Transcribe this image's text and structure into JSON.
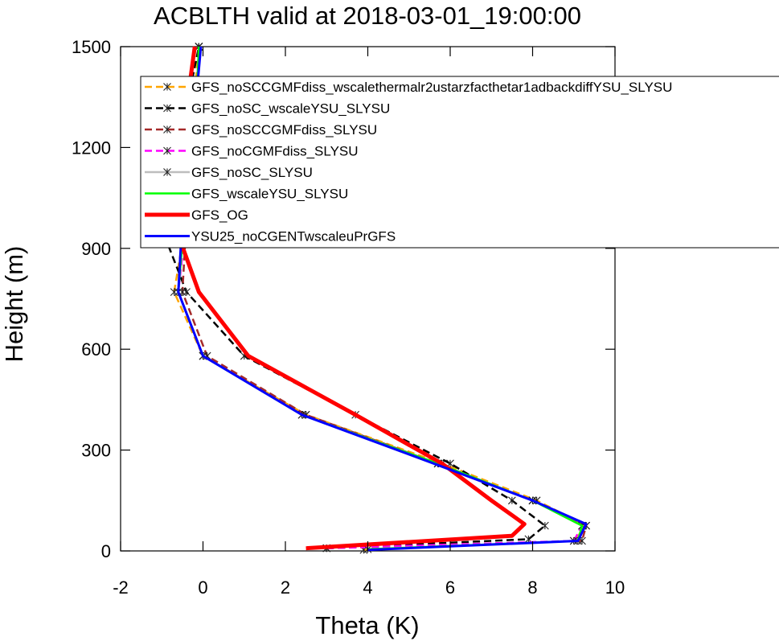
{
  "chart_data": {
    "type": "line",
    "title": "ACBLTH valid at 2018-03-01_19:00:00",
    "xlabel": "Theta (K)",
    "ylabel": "Height (m)",
    "xlim": [
      -2,
      10
    ],
    "ylim": [
      0,
      1500
    ],
    "xticks": [
      -2,
      0,
      2,
      4,
      6,
      8,
      10
    ],
    "yticks": [
      0,
      300,
      600,
      900,
      1200,
      1500
    ],
    "grid": false,
    "legend_position": "top-right",
    "series": [
      {
        "name": "GFS_noSCCGMFdiss_wscalethermalr2ustarzfacthetar1adbackdiffYSU_SLYSU",
        "color": "#ffa500",
        "dash": "dash",
        "marker": "asterisk",
        "width": 2.5,
        "points": [
          [
            3.9,
            3
          ],
          [
            9.0,
            30
          ],
          [
            9.3,
            75
          ],
          [
            8.1,
            150
          ],
          [
            5.8,
            260
          ],
          [
            2.5,
            405
          ],
          [
            0.0,
            580
          ],
          [
            -0.7,
            770
          ],
          [
            -0.4,
            990
          ],
          [
            -0.3,
            1230
          ],
          [
            -0.1,
            1500
          ]
        ]
      },
      {
        "name": "GFS_noSC_wscaleYSU_SLYSU",
        "color": "#000000",
        "dash": "dash",
        "marker": "asterisk",
        "width": 2.5,
        "points": [
          [
            3.0,
            8
          ],
          [
            7.9,
            35
          ],
          [
            8.3,
            75
          ],
          [
            7.5,
            150
          ],
          [
            6.0,
            260
          ],
          [
            3.7,
            405
          ],
          [
            1.0,
            580
          ],
          [
            -0.4,
            770
          ],
          [
            -1.1,
            990
          ],
          [
            -0.55,
            1230
          ],
          [
            -0.1,
            1500
          ]
        ]
      },
      {
        "name": "GFS_noSCCGMFdiss_SLYSU",
        "color": "#a52a2a",
        "dash": "dash",
        "marker": "asterisk",
        "width": 2.5,
        "points": [
          [
            3.0,
            8
          ],
          [
            9.2,
            30
          ],
          [
            9.3,
            75
          ],
          [
            8.0,
            150
          ],
          [
            5.7,
            260
          ],
          [
            2.5,
            405
          ],
          [
            0.1,
            580
          ],
          [
            -0.5,
            770
          ],
          [
            -0.4,
            990
          ],
          [
            -0.2,
            1230
          ],
          [
            -0.1,
            1500
          ]
        ]
      },
      {
        "name": "GFS_noCGMFdiss_SLYSU",
        "color": "#ff00ff",
        "dash": "dash",
        "marker": "asterisk",
        "width": 2.5,
        "points": [
          [
            3.0,
            8
          ],
          [
            9.0,
            30
          ],
          [
            9.2,
            75
          ],
          [
            8.0,
            150
          ],
          [
            5.7,
            260
          ],
          [
            2.4,
            405
          ],
          [
            0.0,
            580
          ],
          [
            -0.6,
            770
          ],
          [
            -0.4,
            990
          ],
          [
            -0.2,
            1230
          ],
          [
            -0.1,
            1500
          ]
        ]
      },
      {
        "name": "GFS_noSC_SLYSU",
        "color": "#bebebe",
        "dash": "solid",
        "marker": "asterisk",
        "width": 2.5,
        "points": [
          [
            4.0,
            5
          ],
          [
            9.1,
            30
          ],
          [
            9.2,
            75
          ],
          [
            8.0,
            150
          ],
          [
            5.7,
            260
          ],
          [
            2.4,
            405
          ],
          [
            0.0,
            580
          ],
          [
            -0.6,
            770
          ],
          [
            -0.45,
            990
          ],
          [
            -0.2,
            1230
          ],
          [
            -0.1,
            1500
          ]
        ]
      },
      {
        "name": "GFS_wscaleYSU_SLYSU",
        "color": "#00ff00",
        "dash": "solid",
        "marker": "none",
        "width": 2.5,
        "points": [
          [
            4.0,
            5
          ],
          [
            9.1,
            30
          ],
          [
            9.2,
            75
          ],
          [
            8.0,
            150
          ],
          [
            5.7,
            260
          ],
          [
            2.4,
            405
          ],
          [
            0.0,
            580
          ],
          [
            -0.6,
            770
          ],
          [
            -0.45,
            990
          ],
          [
            -0.2,
            1230
          ],
          [
            -0.1,
            1500
          ]
        ]
      },
      {
        "name": "GFS_OG",
        "color": "#ff0000",
        "dash": "solid",
        "marker": "none",
        "width": 5,
        "points": [
          [
            2.5,
            8
          ],
          [
            7.5,
            45
          ],
          [
            7.8,
            80
          ],
          [
            7.0,
            150
          ],
          [
            5.8,
            260
          ],
          [
            3.7,
            405
          ],
          [
            1.1,
            580
          ],
          [
            -0.1,
            770
          ],
          [
            -0.75,
            990
          ],
          [
            -0.5,
            1230
          ],
          [
            -0.2,
            1500
          ]
        ]
      },
      {
        "name": "YSU25_noCGENTwscaleuPrGFS",
        "color": "#0000ff",
        "dash": "solid",
        "marker": "none",
        "width": 3,
        "points": [
          [
            4.0,
            3
          ],
          [
            9.1,
            30
          ],
          [
            9.3,
            80
          ],
          [
            8.0,
            150
          ],
          [
            5.6,
            260
          ],
          [
            2.4,
            405
          ],
          [
            0.0,
            580
          ],
          [
            -0.6,
            770
          ],
          [
            -0.5,
            990
          ],
          [
            -0.25,
            1230
          ],
          [
            -0.05,
            1500
          ]
        ]
      }
    ]
  }
}
